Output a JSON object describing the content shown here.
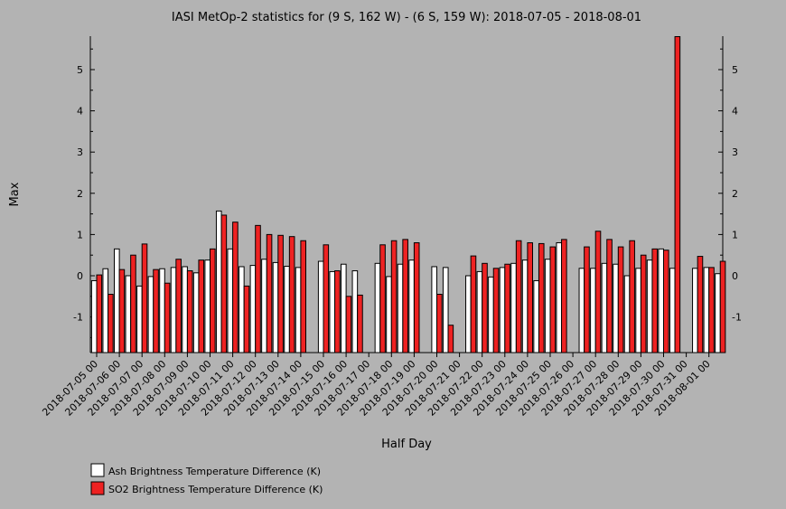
{
  "chart_data": {
    "type": "bar",
    "title": "IASI MetOp-2 statistics for (9 S, 162 W) - (6 S, 159 W): 2018-07-05 - 2018-08-01",
    "xlabel": "Half Day",
    "ylabel": "Max",
    "ylim": [
      -1.9,
      5.8
    ],
    "yticks": [
      "-1",
      "0",
      "1",
      "2",
      "3",
      "4",
      "5"
    ],
    "grid": false,
    "legend_position": "bottom-left",
    "x_tick_labels": [
      "2018-07-05 00",
      "2018-07-06 00",
      "2018-07-07 00",
      "2018-07-08 00",
      "2018-07-09 00",
      "2018-07-10 00",
      "2018-07-11 00",
      "2018-07-12 00",
      "2018-07-13 00",
      "2018-07-14 00",
      "2018-07-15 00",
      "2018-07-16 00",
      "2018-07-17 00",
      "2018-07-18 00",
      "2018-07-19 00",
      "2018-07-20 00",
      "2018-07-21 00",
      "2018-07-22 00",
      "2018-07-23 00",
      "2018-07-24 00",
      "2018-07-25 00",
      "2018-07-26 00",
      "2018-07-27 00",
      "2018-07-28 00",
      "2018-07-29 00",
      "2018-07-30 00",
      "2018-07-31 00",
      "2018-08-01 00"
    ],
    "series": [
      {
        "name": "Ash Brightness Temperature Difference (K)",
        "color": "#ffffff",
        "values": [
          -0.12,
          0.17,
          0.65,
          0.0,
          -0.25,
          -0.02,
          0.17,
          0.2,
          0.22,
          0.07,
          0.38,
          1.57,
          0.65,
          0.22,
          0.25,
          0.4,
          0.32,
          0.23,
          0.2,
          null,
          0.35,
          0.1,
          0.28,
          0.12,
          null,
          0.3,
          -0.02,
          0.28,
          0.38,
          null,
          0.22,
          0.2,
          null,
          0.0,
          0.1,
          -0.03,
          0.2,
          0.3,
          0.38,
          -0.12,
          0.4,
          0.8,
          null,
          0.18,
          0.18,
          0.3,
          0.28,
          0.0,
          0.18,
          0.38,
          0.65,
          0.18,
          null,
          0.18,
          0.2,
          0.05
        ]
      },
      {
        "name": "SO2 Brightness Temperature Difference (K)",
        "color": "#ee2222",
        "values": [
          0.02,
          -0.45,
          0.15,
          0.5,
          0.77,
          0.15,
          -0.18,
          0.4,
          0.12,
          0.38,
          0.65,
          1.47,
          1.3,
          -0.25,
          1.22,
          1.0,
          0.98,
          0.95,
          0.85,
          null,
          0.75,
          0.12,
          -0.5,
          -0.47,
          null,
          0.75,
          0.85,
          0.88,
          0.8,
          null,
          -0.45,
          -1.2,
          null,
          0.48,
          0.3,
          0.18,
          0.28,
          0.85,
          0.8,
          0.78,
          0.7,
          0.88,
          null,
          0.7,
          1.08,
          0.88,
          0.7,
          0.85,
          0.5,
          0.65,
          0.62,
          5.8,
          null,
          0.47,
          0.2,
          0.35
        ]
      }
    ]
  }
}
